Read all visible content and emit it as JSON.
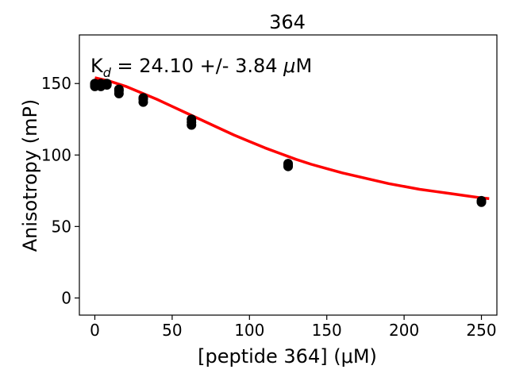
{
  "chart_data": {
    "type": "scatter",
    "title": "364",
    "xlabel": "[peptide 364] (μM)",
    "ylabel": "Anisotropy (mP)",
    "annotation": {
      "k": "K",
      "sub": "d",
      "rest": " = 24.10 +/- 3.84 ",
      "mu": "μ",
      "unit": "M"
    },
    "xlim": [
      -10,
      260
    ],
    "ylim": [
      -12,
      184
    ],
    "xticks": [
      0,
      50,
      100,
      150,
      200,
      250
    ],
    "yticks": [
      0,
      50,
      100,
      150
    ],
    "grid": false,
    "point_color": "#000000",
    "fit_color": "#ff0000",
    "points": [
      {
        "x": 0,
        "y": 148
      },
      {
        "x": 0,
        "y": 149
      },
      {
        "x": 0,
        "y": 150
      },
      {
        "x": 3.9,
        "y": 148
      },
      {
        "x": 3.9,
        "y": 149
      },
      {
        "x": 3.9,
        "y": 150
      },
      {
        "x": 7.8,
        "y": 149
      },
      {
        "x": 7.8,
        "y": 150
      },
      {
        "x": 15.6,
        "y": 143
      },
      {
        "x": 15.6,
        "y": 145
      },
      {
        "x": 15.6,
        "y": 146
      },
      {
        "x": 31.3,
        "y": 137
      },
      {
        "x": 31.3,
        "y": 139
      },
      {
        "x": 31.3,
        "y": 140
      },
      {
        "x": 62.5,
        "y": 121
      },
      {
        "x": 62.5,
        "y": 123
      },
      {
        "x": 62.5,
        "y": 125
      },
      {
        "x": 125,
        "y": 92
      },
      {
        "x": 125,
        "y": 93
      },
      {
        "x": 125,
        "y": 94
      },
      {
        "x": 250,
        "y": 67
      },
      {
        "x": 250,
        "y": 68
      }
    ],
    "fit": {
      "x": [
        0,
        10,
        20,
        30,
        40,
        50,
        60,
        70,
        80,
        90,
        100,
        110,
        120,
        130,
        140,
        150,
        160,
        170,
        180,
        190,
        200,
        210,
        220,
        230,
        240,
        250,
        255
      ],
      "y": [
        154,
        151.5,
        148,
        143.5,
        139,
        134,
        129,
        124,
        119,
        114,
        109.5,
        105,
        101,
        97,
        93.5,
        90.5,
        87.5,
        85,
        82.5,
        80,
        78,
        76,
        74.5,
        73,
        71.5,
        70,
        69.5
      ]
    }
  }
}
